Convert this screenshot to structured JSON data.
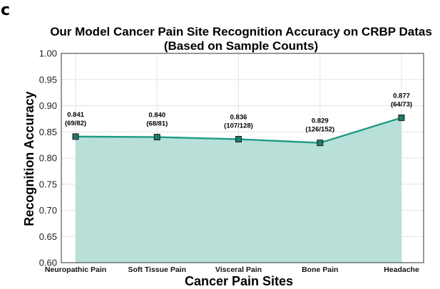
{
  "panel_label": "c",
  "chart_data": {
    "type": "area",
    "title_lines": [
      "Our Model Cancer Pain Site Recognition Accuracy on CRBP Datas",
      "(Based on Sample Counts)"
    ],
    "xlabel": "Cancer Pain Sites",
    "ylabel": "Recognition Accuracy",
    "categories": [
      "Neuropathic Pain",
      "Soft Tissue Pain",
      "Visceral Pain",
      "Bone Pain",
      "Headache"
    ],
    "values": [
      0.841,
      0.84,
      0.836,
      0.829,
      0.877
    ],
    "value_labels": [
      "0.841",
      "0.840",
      "0.836",
      "0.829",
      "0.877"
    ],
    "count_labels": [
      "(69/82)",
      "(68/81)",
      "(107/128)",
      "(126/152)",
      "(64/73)"
    ],
    "ylim": [
      0.6,
      1.0
    ],
    "yticks": [
      "0.60",
      "0.65",
      "0.70",
      "0.75",
      "0.80",
      "0.85",
      "0.90",
      "0.95",
      "1.00"
    ],
    "grid": true,
    "colors": {
      "line": "#1f9b84",
      "fill": "#b8e0d8",
      "marker": "#1f7a68",
      "marker_edge": "#1a1a1a"
    }
  }
}
